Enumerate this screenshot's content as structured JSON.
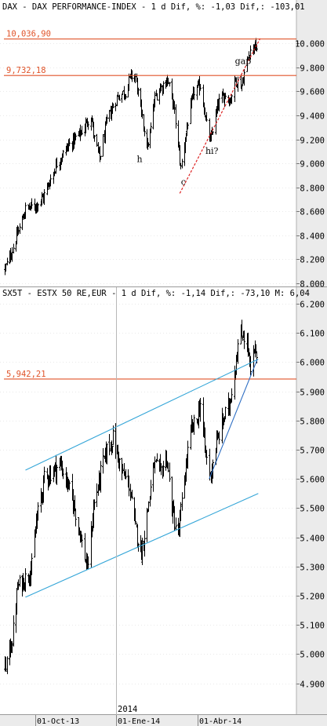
{
  "chart_data": [
    {
      "type": "bar",
      "style": "ohlc",
      "title": "DAX - DAX PERFORMANCE-INDEX -  1 d Dif, %: -1,03 Dif,: -103,01",
      "ylim": [
        8000,
        10100
      ],
      "y_ticks": [
        "8.000",
        "8.200",
        "8.400",
        "8.600",
        "8.800",
        "9.000",
        "9.200",
        "9.400",
        "9.600",
        "9.800",
        "10.000"
      ],
      "y_tick_values": [
        8000,
        8200,
        8400,
        8600,
        8800,
        9000,
        9200,
        9400,
        9600,
        9800,
        10000
      ],
      "x_range": [
        "2013-08-28",
        "2014-06-06"
      ],
      "anchors": [
        {
          "date": "2013-08-28",
          "close": 8120
        },
        {
          "date": "2013-09-06",
          "close": 8300
        },
        {
          "date": "2013-09-20",
          "close": 8620
        },
        {
          "date": "2013-10-01",
          "close": 8650
        },
        {
          "date": "2013-10-10",
          "close": 8720
        },
        {
          "date": "2013-10-25",
          "close": 9000
        },
        {
          "date": "2013-11-07",
          "close": 9150
        },
        {
          "date": "2013-11-20",
          "close": 9250
        },
        {
          "date": "2013-12-02",
          "close": 9400
        },
        {
          "date": "2013-12-06",
          "close": 9200
        },
        {
          "date": "2013-12-12",
          "close": 9040
        },
        {
          "date": "2013-12-20",
          "close": 9350
        },
        {
          "date": "2013-12-31",
          "close": 9550
        },
        {
          "date": "2014-01-10",
          "close": 9600
        },
        {
          "date": "2014-01-16",
          "close": 9730
        },
        {
          "date": "2014-01-21",
          "close": 9720
        },
        {
          "date": "2014-01-28",
          "close": 9400
        },
        {
          "date": "2014-02-04",
          "close": 9130
        },
        {
          "date": "2014-02-12",
          "close": 9550
        },
        {
          "date": "2014-02-20",
          "close": 9650
        },
        {
          "date": "2014-02-26",
          "close": 9700
        },
        {
          "date": "2014-03-05",
          "close": 9480
        },
        {
          "date": "2014-03-13",
          "close": 8960
        },
        {
          "date": "2014-03-21",
          "close": 9350
        },
        {
          "date": "2014-03-28",
          "close": 9600
        },
        {
          "date": "2014-04-04",
          "close": 9650
        },
        {
          "date": "2014-04-11",
          "close": 9320
        },
        {
          "date": "2014-04-15",
          "close": 9180
        },
        {
          "date": "2014-04-24",
          "close": 9500
        },
        {
          "date": "2014-05-02",
          "close": 9580
        },
        {
          "date": "2014-05-07",
          "close": 9520
        },
        {
          "date": "2014-05-13",
          "close": 9700
        },
        {
          "date": "2014-05-20",
          "close": 9650
        },
        {
          "date": "2014-05-27",
          "close": 9880
        },
        {
          "date": "2014-05-30",
          "close": 9950
        },
        {
          "date": "2014-06-03",
          "close": 9980
        },
        {
          "date": "2014-06-06",
          "close": 9960
        }
      ],
      "hlines": [
        {
          "label": "10,036,90",
          "value": 10036.9,
          "color": "#e0542a"
        },
        {
          "label": "9,732,18",
          "value": 9732.18,
          "color": "#e0542a"
        }
      ],
      "trendline": {
        "style": "dashed",
        "color": "#dd2222",
        "from": {
          "date": "2014-03-12",
          "value": 8750
        },
        "to": {
          "date": "2014-06-10",
          "value": 10040
        }
      },
      "annotations": [
        {
          "text": "h",
          "date": "2014-01-26",
          "value": 9010
        },
        {
          "text": "c",
          "date": "2014-03-16",
          "value": 8820
        },
        {
          "text": "hi?",
          "date": "2014-04-17",
          "value": 9080
        },
        {
          "text": "gap",
          "date": "2014-05-22",
          "value": 9830
        }
      ]
    },
    {
      "type": "bar",
      "style": "ohlc",
      "title": "SX5T - ESTX 50 RE,EUR -  1 d Dif, %: -1,14 Dif,: -73,10 M: 6,04",
      "ylim": [
        4880,
        6200
      ],
      "y_ticks": [
        "4.900",
        "5.000",
        "5.100",
        "5.200",
        "5.300",
        "5.400",
        "5.500",
        "5.600",
        "5.700",
        "5.800",
        "5.900",
        "6.000",
        "6.100",
        "6.200"
      ],
      "y_tick_values": [
        4900,
        5000,
        5100,
        5200,
        5300,
        5400,
        5500,
        5600,
        5700,
        5800,
        5900,
        6000,
        6100,
        6200
      ],
      "x_range": [
        "2013-08-28",
        "2014-06-06"
      ],
      "anchors": [
        {
          "date": "2013-08-28",
          "close": 4950
        },
        {
          "date": "2013-09-05",
          "close": 5050
        },
        {
          "date": "2013-09-11",
          "close": 5230
        },
        {
          "date": "2013-09-20",
          "close": 5260
        },
        {
          "date": "2013-09-27",
          "close": 5300
        },
        {
          "date": "2013-10-02",
          "close": 5450
        },
        {
          "date": "2013-10-11",
          "close": 5600
        },
        {
          "date": "2013-10-21",
          "close": 5630
        },
        {
          "date": "2013-10-29",
          "close": 5650
        },
        {
          "date": "2013-11-06",
          "close": 5580
        },
        {
          "date": "2013-11-14",
          "close": 5500
        },
        {
          "date": "2013-11-22",
          "close": 5380
        },
        {
          "date": "2013-11-28",
          "close": 5290
        },
        {
          "date": "2013-12-05",
          "close": 5500
        },
        {
          "date": "2013-12-13",
          "close": 5620
        },
        {
          "date": "2013-12-20",
          "close": 5700
        },
        {
          "date": "2013-12-27",
          "close": 5740
        },
        {
          "date": "2014-01-06",
          "close": 5620
        },
        {
          "date": "2014-01-14",
          "close": 5580
        },
        {
          "date": "2014-01-21",
          "close": 5430
        },
        {
          "date": "2014-01-28",
          "close": 5350
        },
        {
          "date": "2014-02-04",
          "close": 5500
        },
        {
          "date": "2014-02-11",
          "close": 5650
        },
        {
          "date": "2014-02-18",
          "close": 5620
        },
        {
          "date": "2014-02-25",
          "close": 5680
        },
        {
          "date": "2014-03-03",
          "close": 5500
        },
        {
          "date": "2014-03-10",
          "close": 5400
        },
        {
          "date": "2014-03-17",
          "close": 5600
        },
        {
          "date": "2014-03-24",
          "close": 5760
        },
        {
          "date": "2014-03-31",
          "close": 5800
        },
        {
          "date": "2014-04-04",
          "close": 5860
        },
        {
          "date": "2014-04-09",
          "close": 5700
        },
        {
          "date": "2014-04-15",
          "close": 5610
        },
        {
          "date": "2014-04-22",
          "close": 5720
        },
        {
          "date": "2014-04-29",
          "close": 5800
        },
        {
          "date": "2014-05-06",
          "close": 5850
        },
        {
          "date": "2014-05-12",
          "close": 5970
        },
        {
          "date": "2014-05-17",
          "close": 6080
        },
        {
          "date": "2014-05-22",
          "close": 6100
        },
        {
          "date": "2014-05-27",
          "close": 6050
        },
        {
          "date": "2014-05-30",
          "close": 5960
        },
        {
          "date": "2014-06-02",
          "close": 6020
        },
        {
          "date": "2014-06-05",
          "close": 6040
        },
        {
          "date": "2014-06-06",
          "close": 5990
        }
      ],
      "hlines": [
        {
          "label": "5,942,21",
          "value": 5942.21,
          "color": "#e0542a"
        }
      ],
      "channel_lines": [
        {
          "color": "#35a6d8",
          "from": {
            "date": "2013-09-20",
            "value": 5630
          },
          "to": {
            "date": "2014-06-08",
            "value": 6010
          }
        },
        {
          "color": "#35a6d8",
          "from": {
            "date": "2013-09-20",
            "value": 5195
          },
          "to": {
            "date": "2014-06-08",
            "value": 5550
          }
        },
        {
          "color": "#2f6fc4",
          "from": {
            "date": "2014-04-14",
            "value": 5600
          },
          "to": {
            "date": "2014-06-07",
            "value": 6010
          }
        }
      ]
    }
  ],
  "x_axis": {
    "year_label": "2014",
    "labels": [
      "01-Oct-13",
      "01-Ene-14",
      "01-Abr-14"
    ]
  },
  "colors": {
    "background": "#ffffff",
    "bars": "#000000",
    "hline": "#e0542a",
    "trend_dashed": "#dd2222",
    "channel": "#35a6d8",
    "support": "#2f6fc4",
    "axis_panel": "#ebebeb",
    "grid": "#d4d4d4"
  }
}
